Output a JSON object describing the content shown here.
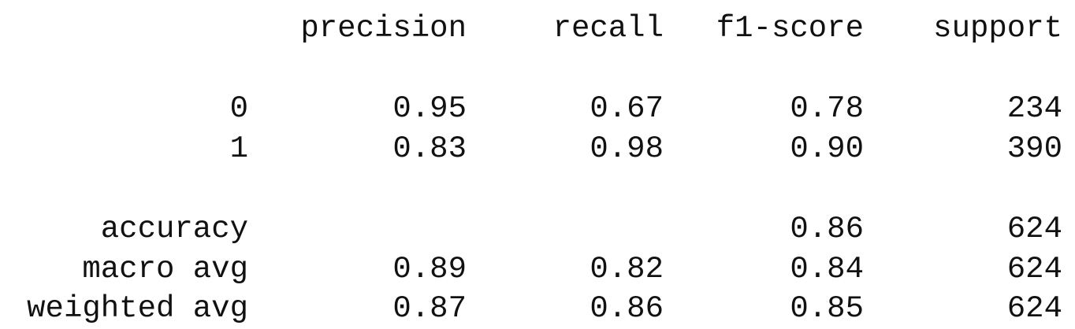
{
  "report": {
    "headers": [
      "precision",
      "recall",
      "f1-score",
      "support"
    ],
    "rows": [
      {
        "label": "0",
        "precision": "0.95",
        "recall": "0.67",
        "f1": "0.78",
        "support": "234"
      },
      {
        "label": "1",
        "precision": "0.83",
        "recall": "0.98",
        "f1": "0.90",
        "support": "390"
      },
      {
        "label": "accuracy",
        "precision": "",
        "recall": "",
        "f1": "0.86",
        "support": "624"
      },
      {
        "label": "macro avg",
        "precision": "0.89",
        "recall": "0.82",
        "f1": "0.84",
        "support": "624"
      },
      {
        "label": "weighted avg",
        "precision": "0.87",
        "recall": "0.86",
        "f1": "0.85",
        "support": "624"
      }
    ]
  }
}
